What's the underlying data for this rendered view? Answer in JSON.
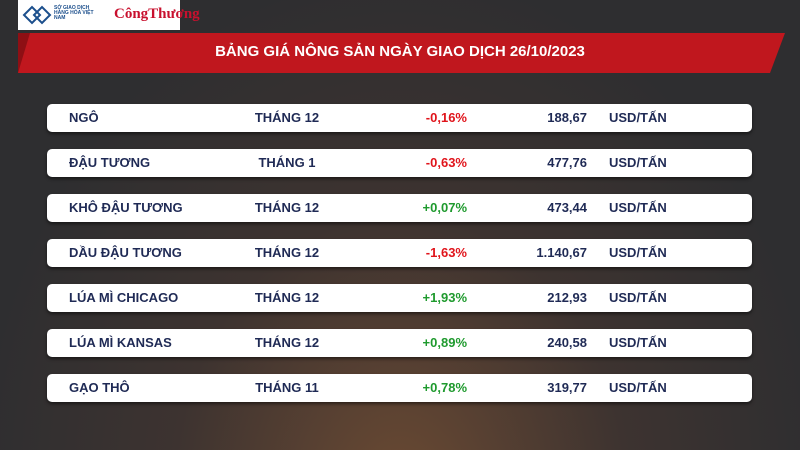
{
  "header": {
    "logo_left": "SỞ GIAO DỊCH HÀNG HÓA VIỆT NAM",
    "logo_right": "CôngThương"
  },
  "title": "BẢNG GIÁ NÔNG SẢN NGÀY GIAO DỊCH 26/10/2023",
  "table": {
    "rows": [
      [
        "NGÔ",
        "THÁNG 12",
        "-0,16%",
        "188,67",
        "USD/TẤN"
      ],
      [
        "ĐẬU TƯƠNG",
        "THÁNG 1",
        "-0,63%",
        "477,76",
        "USD/TẤN"
      ],
      [
        "KHÔ ĐẬU TƯƠNG",
        "THÁNG 12",
        "+0,07%",
        "473,44",
        "USD/TẤN"
      ],
      [
        "DẦU ĐẬU TƯƠNG",
        "THÁNG 12",
        "-1,63%",
        "1.140,67",
        "USD/TẤN"
      ],
      [
        "LÚA MÌ CHICAGO",
        "THÁNG 12",
        "+1,93%",
        "212,93",
        "USD/TẤN"
      ],
      [
        "LÚA MÌ KANSAS",
        "THÁNG 12",
        "+0,89%",
        "240,58",
        "USD/TẤN"
      ],
      [
        "GẠO THÔ",
        "THÁNG 11",
        "+0,78%",
        "319,77",
        "USD/TẤN"
      ]
    ]
  }
}
